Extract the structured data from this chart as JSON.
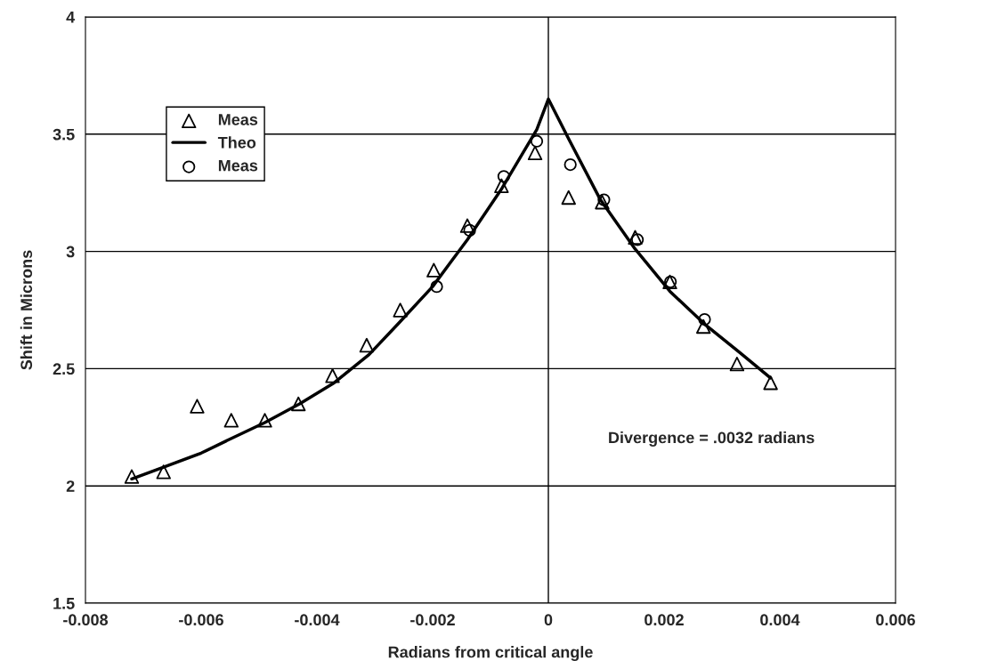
{
  "chart_data": {
    "type": "scatter",
    "xlabel": "Radians from critical angle",
    "ylabel": "Shift in Microns",
    "xlim": [
      -0.008,
      0.006
    ],
    "xticks": [
      -0.008,
      -0.006,
      -0.004,
      -0.002,
      0,
      0.002,
      0.004,
      0.006
    ],
    "ylim": [
      1.5,
      4
    ],
    "yticks": [
      1.5,
      2,
      2.5,
      3,
      3.5,
      4
    ],
    "grid": "y",
    "legend": "top left",
    "ref_lines": [
      {
        "axis": "x",
        "value": 0,
        "color": "#000000"
      }
    ],
    "annotations": [
      "Divergence = .0032 radians"
    ],
    "series": [
      {
        "name": "Meas",
        "marker": "triangle",
        "color": "#000000",
        "x": [
          -0.0072,
          -0.00665,
          -0.00607,
          -0.00548,
          -0.0049,
          -0.00432,
          -0.00373,
          -0.00314,
          -0.00256,
          -0.00198,
          -0.0014,
          -0.00081,
          -0.00023,
          0.00035,
          0.00093,
          0.0015,
          0.0021,
          0.00268,
          0.00326,
          0.00384
        ],
        "values": [
          2.04,
          2.06,
          2.34,
          2.28,
          2.28,
          2.35,
          2.47,
          2.6,
          2.75,
          2.92,
          3.11,
          3.28,
          3.42,
          3.23,
          3.21,
          3.06,
          2.87,
          2.68,
          2.52,
          2.44
        ]
      },
      {
        "name": "Theo",
        "type": "line",
        "marker": "none",
        "line_style": "solid",
        "color": "#000000",
        "x": [
          -0.0072,
          -0.00665,
          -0.006,
          -0.0055,
          -0.0049,
          -0.0043,
          -0.0037,
          -0.0031,
          -0.0026,
          -0.002,
          -0.0014,
          -0.0008,
          -0.0002,
          0,
          0.00035,
          0.0009,
          0.0015,
          0.0021,
          0.0027,
          0.0033,
          0.00384
        ],
        "values": [
          2.03,
          2.08,
          2.14,
          2.2,
          2.27,
          2.35,
          2.44,
          2.56,
          2.69,
          2.85,
          3.05,
          3.27,
          3.52,
          3.65,
          3.48,
          3.22,
          3.01,
          2.83,
          2.69,
          2.57,
          2.46
        ]
      },
      {
        "name": "Meas",
        "marker": "circle",
        "color": "#000000",
        "x": [
          -0.00193,
          -0.00136,
          -0.00077,
          -0.0002,
          0.00038,
          0.00096,
          0.00154,
          0.00211,
          0.0027
        ],
        "values": [
          2.85,
          3.09,
          3.32,
          3.47,
          3.37,
          3.22,
          3.05,
          2.87,
          2.71
        ]
      }
    ]
  }
}
